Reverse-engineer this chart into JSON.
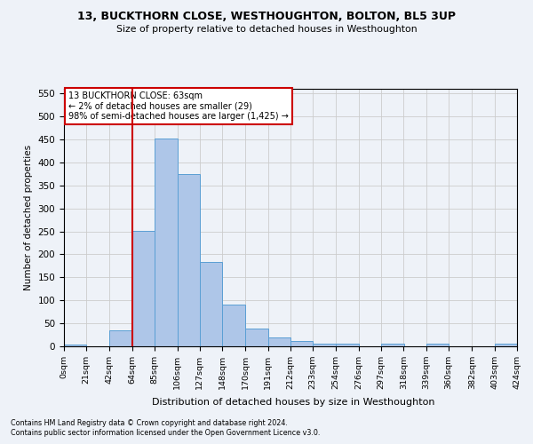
{
  "title1": "13, BUCKTHORN CLOSE, WESTHOUGHTON, BOLTON, BL5 3UP",
  "title2": "Size of property relative to detached houses in Westhoughton",
  "xlabel": "Distribution of detached houses by size in Westhoughton",
  "ylabel": "Number of detached properties",
  "footnote1": "Contains HM Land Registry data © Crown copyright and database right 2024.",
  "footnote2": "Contains public sector information licensed under the Open Government Licence v3.0.",
  "annotation_line1": "13 BUCKTHORN CLOSE: 63sqm",
  "annotation_line2": "← 2% of detached houses are smaller (29)",
  "annotation_line3": "98% of semi-detached houses are larger (1,425) →",
  "subject_value": 63,
  "bin_edges": [
    0,
    21,
    42,
    64,
    85,
    106,
    127,
    148,
    170,
    191,
    212,
    233,
    254,
    276,
    297,
    318,
    339,
    360,
    382,
    403,
    424
  ],
  "bar_heights": [
    4,
    0,
    35,
    251,
    451,
    374,
    184,
    90,
    38,
    20,
    12,
    5,
    5,
    0,
    5,
    0,
    5,
    0,
    0,
    5
  ],
  "bar_color": "#aec6e8",
  "bar_edgecolor": "#5a9fd4",
  "vline_color": "#cc0000",
  "vline_x": 64,
  "annotation_box_edgecolor": "#cc0000",
  "annotation_box_facecolor": "#ffffff",
  "ylim": [
    0,
    560
  ],
  "yticks": [
    0,
    50,
    100,
    150,
    200,
    250,
    300,
    350,
    400,
    450,
    500,
    550
  ],
  "grid_color": "#cccccc",
  "bg_color": "#eef2f8"
}
